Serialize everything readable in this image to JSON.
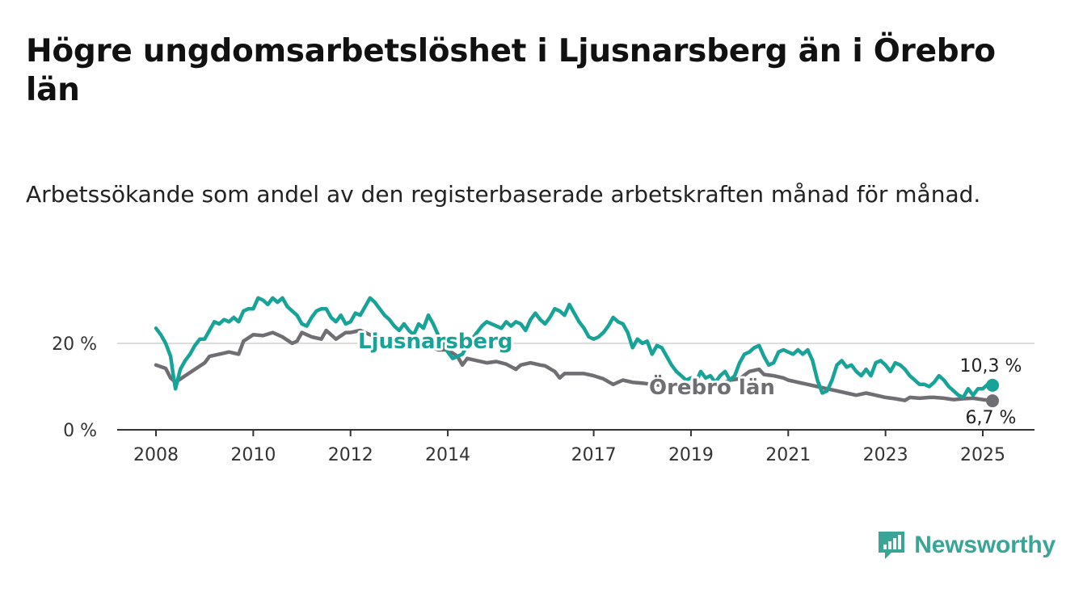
{
  "title": "Högre ungdomsarbetslöshet i Ljusnarsberg än i Örebro län",
  "subtitle": "Arbetssökande som andel av den registerbaserade arbetskraften månad för månad.",
  "brand": {
    "name": "Newsworthy",
    "icon": "newsworthy-logo-icon",
    "color": "#3aa596"
  },
  "chart_data": {
    "type": "line",
    "xlabel": "",
    "ylabel": "",
    "xlim": [
      2008,
      2025.2
    ],
    "ylim": [
      0,
      30
    ],
    "y_ticks": [
      {
        "value": 0,
        "label": "0 %"
      },
      {
        "value": 20,
        "label": "20 %"
      }
    ],
    "x_ticks": [
      {
        "value": 2008,
        "label": "2008"
      },
      {
        "value": 2010,
        "label": "2010"
      },
      {
        "value": 2012,
        "label": "2012"
      },
      {
        "value": 2014,
        "label": "2014"
      },
      {
        "value": 2017,
        "label": "2017"
      },
      {
        "value": 2019,
        "label": "2019"
      },
      {
        "value": 2021,
        "label": "2021"
      },
      {
        "value": 2023,
        "label": "2023"
      },
      {
        "value": 2025,
        "label": "2025"
      }
    ],
    "grid": "horizontal",
    "legend": "inline labels",
    "series": [
      {
        "name": "Ljusnarsberg",
        "color": "#17a398",
        "end_label": "10,3 %",
        "points": [
          [
            2008.0,
            23.5
          ],
          [
            2008.1,
            22.0
          ],
          [
            2008.2,
            20.0
          ],
          [
            2008.3,
            17.0
          ],
          [
            2008.35,
            13.0
          ],
          [
            2008.4,
            9.5
          ],
          [
            2008.5,
            14.0
          ],
          [
            2008.6,
            16.0
          ],
          [
            2008.7,
            17.5
          ],
          [
            2008.8,
            19.5
          ],
          [
            2008.9,
            21.0
          ],
          [
            2009.0,
            21.0
          ],
          [
            2009.1,
            23.0
          ],
          [
            2009.2,
            25.0
          ],
          [
            2009.3,
            24.5
          ],
          [
            2009.4,
            25.5
          ],
          [
            2009.5,
            25.0
          ],
          [
            2009.6,
            26.0
          ],
          [
            2009.7,
            25.0
          ],
          [
            2009.8,
            27.5
          ],
          [
            2009.9,
            28.0
          ],
          [
            2010.0,
            28.0
          ],
          [
            2010.1,
            30.5
          ],
          [
            2010.2,
            30.0
          ],
          [
            2010.3,
            29.0
          ],
          [
            2010.4,
            30.5
          ],
          [
            2010.5,
            29.5
          ],
          [
            2010.6,
            30.5
          ],
          [
            2010.7,
            28.5
          ],
          [
            2010.8,
            27.5
          ],
          [
            2010.9,
            26.5
          ],
          [
            2011.0,
            24.5
          ],
          [
            2011.1,
            24.0
          ],
          [
            2011.2,
            26.0
          ],
          [
            2011.3,
            27.5
          ],
          [
            2011.4,
            28.0
          ],
          [
            2011.5,
            28.0
          ],
          [
            2011.6,
            26.0
          ],
          [
            2011.7,
            25.0
          ],
          [
            2011.8,
            26.5
          ],
          [
            2011.9,
            24.5
          ],
          [
            2012.0,
            25.0
          ],
          [
            2012.1,
            27.0
          ],
          [
            2012.2,
            26.5
          ],
          [
            2012.3,
            28.5
          ],
          [
            2012.4,
            30.5
          ],
          [
            2012.5,
            29.5
          ],
          [
            2012.6,
            28.0
          ],
          [
            2012.7,
            26.5
          ],
          [
            2012.8,
            25.5
          ],
          [
            2012.9,
            24.0
          ],
          [
            2013.0,
            23.0
          ],
          [
            2013.1,
            24.5
          ],
          [
            2013.2,
            23.0
          ],
          [
            2013.3,
            22.0
          ],
          [
            2013.4,
            24.5
          ],
          [
            2013.5,
            23.5
          ],
          [
            2013.6,
            26.5
          ],
          [
            2013.7,
            24.5
          ],
          [
            2013.8,
            22.0
          ],
          [
            2013.9,
            20.0
          ],
          [
            2014.0,
            18.0
          ],
          [
            2014.1,
            16.5
          ],
          [
            2014.2,
            17.0
          ],
          [
            2014.3,
            17.5
          ],
          [
            2014.4,
            19.5
          ],
          [
            2014.5,
            21.0
          ],
          [
            2014.6,
            22.5
          ],
          [
            2014.7,
            24.0
          ],
          [
            2014.8,
            25.0
          ],
          [
            2014.9,
            24.5
          ],
          [
            2015.0,
            24.0
          ],
          [
            2015.1,
            23.5
          ],
          [
            2015.2,
            25.0
          ],
          [
            2015.3,
            24.0
          ],
          [
            2015.4,
            25.0
          ],
          [
            2015.5,
            24.5
          ],
          [
            2015.6,
            23.0
          ],
          [
            2015.7,
            25.5
          ],
          [
            2015.8,
            27.0
          ],
          [
            2015.9,
            25.5
          ],
          [
            2016.0,
            24.5
          ],
          [
            2016.1,
            26.0
          ],
          [
            2016.2,
            28.0
          ],
          [
            2016.3,
            27.5
          ],
          [
            2016.4,
            26.5
          ],
          [
            2016.5,
            29.0
          ],
          [
            2016.6,
            27.0
          ],
          [
            2016.7,
            25.0
          ],
          [
            2016.8,
            23.5
          ],
          [
            2016.9,
            21.5
          ],
          [
            2017.0,
            21.0
          ],
          [
            2017.1,
            21.5
          ],
          [
            2017.2,
            22.5
          ],
          [
            2017.3,
            24.0
          ],
          [
            2017.4,
            26.0
          ],
          [
            2017.5,
            25.0
          ],
          [
            2017.6,
            24.5
          ],
          [
            2017.7,
            22.5
          ],
          [
            2017.8,
            19.0
          ],
          [
            2017.9,
            21.0
          ],
          [
            2018.0,
            20.0
          ],
          [
            2018.1,
            20.5
          ],
          [
            2018.2,
            17.5
          ],
          [
            2018.3,
            19.5
          ],
          [
            2018.4,
            19.0
          ],
          [
            2018.5,
            17.0
          ],
          [
            2018.6,
            15.0
          ],
          [
            2018.7,
            13.5
          ],
          [
            2018.8,
            12.5
          ],
          [
            2018.9,
            11.5
          ],
          [
            2019.0,
            12.0
          ],
          [
            2019.1,
            11.0
          ],
          [
            2019.2,
            13.5
          ],
          [
            2019.3,
            12.0
          ],
          [
            2019.4,
            12.5
          ],
          [
            2019.5,
            11.0
          ],
          [
            2019.6,
            12.5
          ],
          [
            2019.7,
            13.5
          ],
          [
            2019.8,
            11.5
          ],
          [
            2019.9,
            12.5
          ],
          [
            2020.0,
            15.5
          ],
          [
            2020.1,
            17.5
          ],
          [
            2020.2,
            18.0
          ],
          [
            2020.3,
            19.0
          ],
          [
            2020.4,
            19.5
          ],
          [
            2020.5,
            17.0
          ],
          [
            2020.6,
            15.0
          ],
          [
            2020.7,
            15.5
          ],
          [
            2020.8,
            18.0
          ],
          [
            2020.9,
            18.5
          ],
          [
            2021.0,
            18.0
          ],
          [
            2021.1,
            17.5
          ],
          [
            2021.2,
            18.5
          ],
          [
            2021.3,
            17.5
          ],
          [
            2021.4,
            18.5
          ],
          [
            2021.5,
            16.0
          ],
          [
            2021.6,
            11.5
          ],
          [
            2021.7,
            8.5
          ],
          [
            2021.8,
            9.0
          ],
          [
            2021.9,
            11.5
          ],
          [
            2022.0,
            15.0
          ],
          [
            2022.1,
            16.0
          ],
          [
            2022.2,
            14.5
          ],
          [
            2022.3,
            15.0
          ],
          [
            2022.4,
            13.5
          ],
          [
            2022.5,
            12.5
          ],
          [
            2022.6,
            14.0
          ],
          [
            2022.7,
            12.5
          ],
          [
            2022.8,
            15.5
          ],
          [
            2022.9,
            16.0
          ],
          [
            2023.0,
            15.0
          ],
          [
            2023.1,
            13.5
          ],
          [
            2023.2,
            15.5
          ],
          [
            2023.3,
            15.0
          ],
          [
            2023.4,
            14.0
          ],
          [
            2023.5,
            12.5
          ],
          [
            2023.6,
            11.5
          ],
          [
            2023.7,
            10.5
          ],
          [
            2023.8,
            10.5
          ],
          [
            2023.9,
            10.0
          ],
          [
            2024.0,
            11.0
          ],
          [
            2024.1,
            12.5
          ],
          [
            2024.2,
            11.5
          ],
          [
            2024.3,
            10.0
          ],
          [
            2024.4,
            9.0
          ],
          [
            2024.5,
            8.0
          ],
          [
            2024.6,
            7.5
          ],
          [
            2024.7,
            9.5
          ],
          [
            2024.8,
            8.0
          ],
          [
            2024.9,
            9.5
          ],
          [
            2025.0,
            9.5
          ],
          [
            2025.1,
            10.5
          ],
          [
            2025.2,
            10.3
          ]
        ]
      },
      {
        "name": "Örebro län",
        "color": "#6e6e73",
        "end_label": "6,7 %",
        "points": [
          [
            2008.0,
            15.0
          ],
          [
            2008.2,
            14.2
          ],
          [
            2008.3,
            12.0
          ],
          [
            2008.4,
            11.0
          ],
          [
            2008.6,
            12.5
          ],
          [
            2008.8,
            14.0
          ],
          [
            2009.0,
            15.5
          ],
          [
            2009.1,
            17.0
          ],
          [
            2009.3,
            17.5
          ],
          [
            2009.5,
            18.0
          ],
          [
            2009.7,
            17.5
          ],
          [
            2009.8,
            20.5
          ],
          [
            2010.0,
            22.0
          ],
          [
            2010.2,
            21.8
          ],
          [
            2010.4,
            22.5
          ],
          [
            2010.6,
            21.5
          ],
          [
            2010.8,
            20.0
          ],
          [
            2010.9,
            20.5
          ],
          [
            2011.0,
            22.5
          ],
          [
            2011.2,
            21.5
          ],
          [
            2011.4,
            21.0
          ],
          [
            2011.5,
            23.0
          ],
          [
            2011.7,
            21.0
          ],
          [
            2011.9,
            22.5
          ],
          [
            2012.0,
            22.5
          ],
          [
            2012.2,
            23.0
          ],
          [
            2012.4,
            22.0
          ],
          [
            2012.6,
            21.5
          ],
          [
            2012.8,
            20.5
          ],
          [
            2013.0,
            19.5
          ],
          [
            2013.2,
            20.0
          ],
          [
            2013.4,
            19.0
          ],
          [
            2013.6,
            19.5
          ],
          [
            2013.8,
            18.5
          ],
          [
            2014.0,
            18.5
          ],
          [
            2014.2,
            17.0
          ],
          [
            2014.3,
            15.0
          ],
          [
            2014.4,
            16.5
          ],
          [
            2014.6,
            16.0
          ],
          [
            2014.8,
            15.5
          ],
          [
            2015.0,
            15.8
          ],
          [
            2015.2,
            15.2
          ],
          [
            2015.4,
            14.0
          ],
          [
            2015.5,
            15.0
          ],
          [
            2015.7,
            15.5
          ],
          [
            2015.9,
            15.0
          ],
          [
            2016.0,
            14.8
          ],
          [
            2016.2,
            13.5
          ],
          [
            2016.3,
            12.0
          ],
          [
            2016.4,
            13.0
          ],
          [
            2016.6,
            13.0
          ],
          [
            2016.8,
            13.0
          ],
          [
            2017.0,
            12.5
          ],
          [
            2017.2,
            11.8
          ],
          [
            2017.4,
            10.5
          ],
          [
            2017.6,
            11.5
          ],
          [
            2017.8,
            11.0
          ],
          [
            2018.0,
            10.8
          ],
          [
            2018.2,
            10.5
          ],
          [
            2018.4,
            10.3
          ],
          [
            2018.6,
            10.5
          ],
          [
            2018.8,
            10.0
          ],
          [
            2019.0,
            10.5
          ],
          [
            2019.2,
            10.0
          ],
          [
            2019.4,
            10.2
          ],
          [
            2019.6,
            10.5
          ],
          [
            2019.8,
            11.5
          ],
          [
            2020.0,
            11.8
          ],
          [
            2020.2,
            13.5
          ],
          [
            2020.4,
            14.0
          ],
          [
            2020.5,
            12.8
          ],
          [
            2020.7,
            12.5
          ],
          [
            2020.9,
            12.0
          ],
          [
            2021.0,
            11.5
          ],
          [
            2021.2,
            11.0
          ],
          [
            2021.4,
            10.5
          ],
          [
            2021.6,
            10.0
          ],
          [
            2021.8,
            9.5
          ],
          [
            2022.0,
            9.0
          ],
          [
            2022.2,
            8.5
          ],
          [
            2022.4,
            8.0
          ],
          [
            2022.6,
            8.5
          ],
          [
            2022.8,
            8.0
          ],
          [
            2023.0,
            7.5
          ],
          [
            2023.2,
            7.2
          ],
          [
            2023.4,
            6.8
          ],
          [
            2023.5,
            7.5
          ],
          [
            2023.7,
            7.3
          ],
          [
            2023.9,
            7.5
          ],
          [
            2024.0,
            7.5
          ],
          [
            2024.2,
            7.3
          ],
          [
            2024.4,
            7.0
          ],
          [
            2024.6,
            7.2
          ],
          [
            2024.8,
            7.3
          ],
          [
            2025.0,
            7.0
          ],
          [
            2025.2,
            6.7
          ]
        ]
      }
    ]
  }
}
